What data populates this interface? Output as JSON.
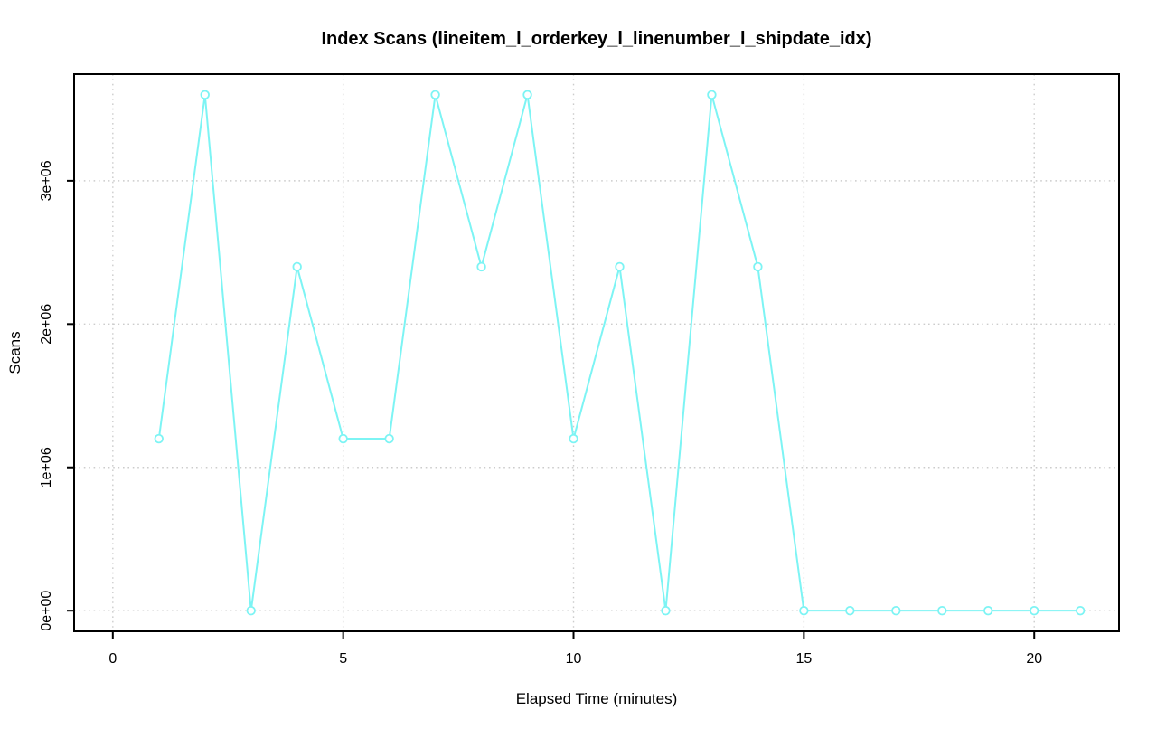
{
  "figure": {
    "title": "Index Scans (lineitem_l_orderkey_l_linenumber_l_shipdate_idx)",
    "x_axis_label": "Elapsed Time (minutes)",
    "y_axis_label": "Scans"
  },
  "colors": {
    "series": "#7DF4F4",
    "marker_fill": "#FFFFFF",
    "grid": "#CCCCCC",
    "axis": "#000000",
    "background": "#FFFFFF"
  },
  "chart_data": {
    "type": "line",
    "title": "Index Scans (lineitem_l_orderkey_l_linenumber_l_shipdate_idx)",
    "xlabel": "Elapsed Time (minutes)",
    "ylabel": "Scans",
    "marker": "open-circle",
    "line_style": "solid",
    "grid": "dotted",
    "legend": null,
    "x": [
      1,
      2,
      3,
      4,
      5,
      6,
      7,
      8,
      9,
      10,
      11,
      12,
      13,
      14,
      15,
      16,
      17,
      18,
      19,
      20,
      21
    ],
    "values": [
      1200000,
      3600000,
      0,
      2400000,
      1200000,
      1200000,
      3600000,
      2400000,
      3600000,
      1200000,
      2400000,
      0,
      3600000,
      2400000,
      0,
      0,
      0,
      0,
      0,
      0,
      0
    ],
    "xlim": [
      0,
      21
    ],
    "ylim": [
      0,
      3600000
    ],
    "x_ticks": [
      {
        "value": 0,
        "label": "0"
      },
      {
        "value": 5,
        "label": "5"
      },
      {
        "value": 10,
        "label": "10"
      },
      {
        "value": 15,
        "label": "15"
      },
      {
        "value": 20,
        "label": "20"
      }
    ],
    "y_ticks": [
      {
        "value": 0,
        "label": "0e+00"
      },
      {
        "value": 1000000,
        "label": "1e+06"
      },
      {
        "value": 2000000,
        "label": "2e+06"
      },
      {
        "value": 3000000,
        "label": "3e+06"
      }
    ]
  }
}
